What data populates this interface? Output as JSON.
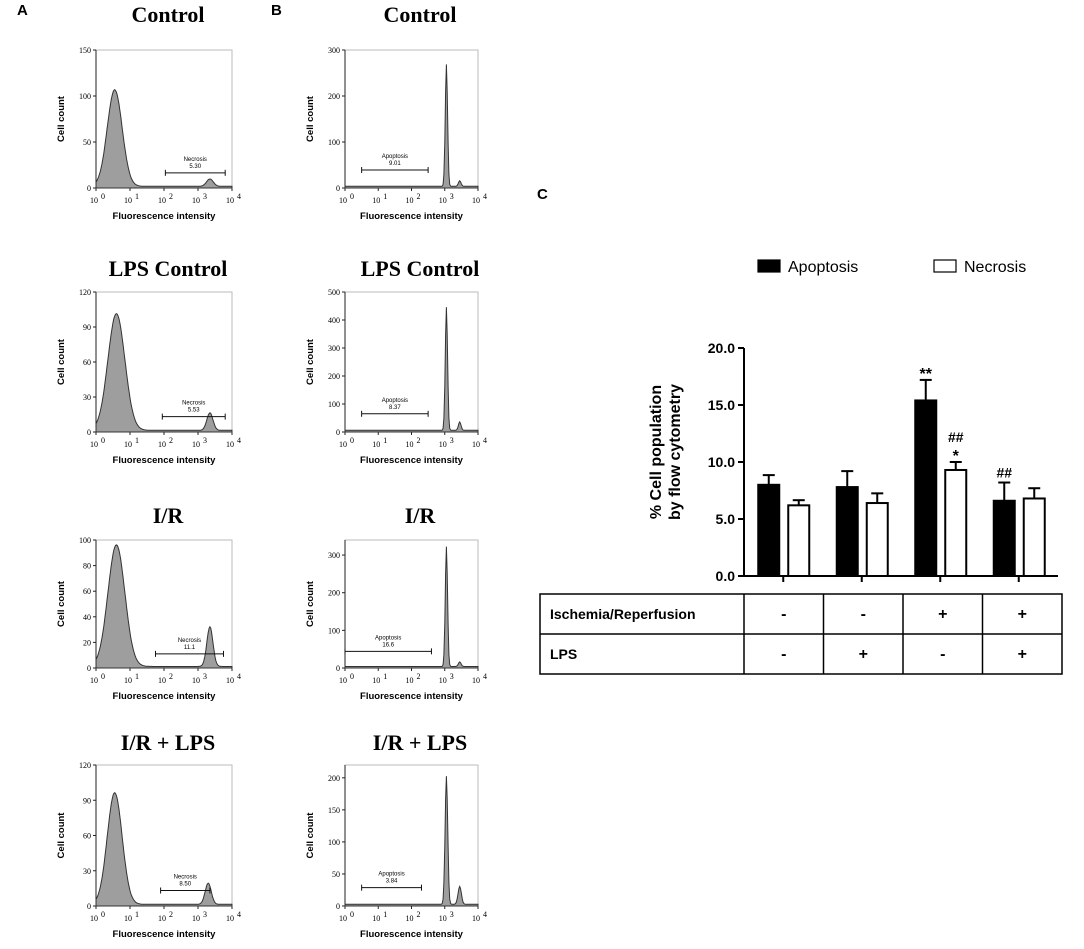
{
  "panel_labels": {
    "a": "A",
    "b": "B",
    "c": "C"
  },
  "hist_common": {
    "ylabel": "Cell count",
    "xlabel": "Fluorescence intensity",
    "xticks": [
      "10",
      "10",
      "10",
      "10",
      "10"
    ],
    "xtick_exponents": [
      "0",
      "1",
      "2",
      "3",
      "4"
    ],
    "fill_color": "#9e9e9e",
    "line_color": "#333333"
  },
  "chart_data": [
    {
      "panel": "A",
      "type": "area",
      "title": "Control",
      "ylim": [
        0,
        150
      ],
      "yticks": [
        "0",
        "50",
        "100",
        "150"
      ],
      "gate": {
        "label": "Necrosis",
        "value": "5.30",
        "from_decade": 2.04,
        "to_decade": 3.8
      },
      "peaks": [
        [
          0.55,
          105,
          0.22
        ],
        [
          3.35,
          8,
          0.1
        ]
      ]
    },
    {
      "panel": "A",
      "type": "area",
      "title": "LPS Control",
      "ylim": [
        0,
        120
      ],
      "yticks": [
        "0",
        "30",
        "60",
        "90",
        "120"
      ],
      "gate": {
        "label": "Necrosis",
        "value": "5.53",
        "from_decade": 1.95,
        "to_decade": 3.8
      },
      "peaks": [
        [
          0.6,
          100,
          0.25
        ],
        [
          3.35,
          15,
          0.09
        ]
      ]
    },
    {
      "panel": "A",
      "type": "area",
      "title": "I/R",
      "ylim": [
        0,
        100
      ],
      "yticks": [
        "0",
        "20",
        "40",
        "60",
        "80",
        "100"
      ],
      "gate": {
        "label": "Necrosis",
        "value": "11.1",
        "from_decade": 1.75,
        "to_decade": 3.75
      },
      "peaks": [
        [
          0.6,
          95,
          0.25
        ],
        [
          3.35,
          31,
          0.09
        ]
      ]
    },
    {
      "panel": "A",
      "type": "area",
      "title": "I/R + LPS",
      "ylim": [
        0,
        120
      ],
      "yticks": [
        "0",
        "30",
        "60",
        "90",
        "120"
      ],
      "gate": {
        "label": "Necrosis",
        "value": "8.50",
        "from_decade": 1.9,
        "to_decade": 3.35
      },
      "peaks": [
        [
          0.55,
          95,
          0.22
        ],
        [
          3.3,
          18,
          0.09
        ]
      ]
    },
    {
      "panel": "B",
      "type": "area",
      "title": "Control",
      "ylim": [
        0,
        300
      ],
      "yticks": [
        "0",
        "100",
        "200",
        "300"
      ],
      "gate": {
        "label": "Apoptosis",
        "value": "9.01",
        "from_decade": 0.5,
        "to_decade": 2.5
      },
      "peaks": [
        [
          3.05,
          265,
          0.035
        ],
        [
          3.45,
          12,
          0.04
        ]
      ]
    },
    {
      "panel": "B",
      "type": "area",
      "title": "LPS Control",
      "ylim": [
        0,
        500
      ],
      "yticks": [
        "0",
        "100",
        "200",
        "300",
        "400",
        "500"
      ],
      "gate": {
        "label": "Apoptosis",
        "value": "8.37",
        "from_decade": 0.5,
        "to_decade": 2.5
      },
      "peaks": [
        [
          3.05,
          440,
          0.035
        ],
        [
          3.45,
          30,
          0.04
        ]
      ]
    },
    {
      "panel": "B",
      "type": "area",
      "title": "I/R",
      "ylim": [
        0,
        340
      ],
      "yticks": [
        "0",
        "100",
        "200",
        "300"
      ],
      "gate": {
        "label": "Apoptosis",
        "value": "16.6",
        "from_decade": 0.0,
        "to_decade": 2.6
      },
      "peaks": [
        [
          3.05,
          318,
          0.035
        ],
        [
          3.45,
          12,
          0.04
        ]
      ]
    },
    {
      "panel": "B",
      "type": "area",
      "title": "I/R + LPS",
      "ylim": [
        0,
        220
      ],
      "yticks": [
        "0",
        "50",
        "100",
        "150",
        "200"
      ],
      "gate": {
        "label": "Apoptosis",
        "value": "3.84",
        "from_decade": 0.5,
        "to_decade": 2.3
      },
      "peaks": [
        [
          3.05,
          200,
          0.04
        ],
        [
          3.45,
          28,
          0.05
        ]
      ]
    },
    {
      "panel": "C",
      "type": "bar",
      "ylabel_line1": "% Cell population",
      "ylabel_line2": "by flow cytometry",
      "ylim": [
        0,
        20
      ],
      "yticks": [
        "0.0",
        "5.0",
        "10.0",
        "15.0",
        "20.0"
      ],
      "groups": 4,
      "series": [
        {
          "name": "Apoptosis",
          "color": "#000000",
          "values": [
            8.0,
            7.8,
            15.4,
            6.6
          ],
          "errors": [
            0.85,
            1.4,
            1.8,
            1.6
          ]
        },
        {
          "name": "Necrosis",
          "color": "#ffffff",
          "values": [
            6.2,
            6.4,
            9.3,
            6.8
          ],
          "errors": [
            0.45,
            0.85,
            0.7,
            0.9
          ]
        }
      ],
      "annotations": [
        {
          "series": 0,
          "group": 2,
          "text": "**"
        },
        {
          "series": 1,
          "group": 2,
          "text": "*"
        },
        {
          "series": 1,
          "group": 2,
          "text": "##"
        },
        {
          "series": 0,
          "group": 3,
          "text": "##"
        }
      ],
      "condition_table": {
        "rows": [
          {
            "label": "Ischemia/Reperfusion",
            "values": [
              "-",
              "-",
              "+",
              "+"
            ]
          },
          {
            "label": "LPS",
            "values": [
              "-",
              "+",
              "-",
              "+"
            ]
          }
        ]
      }
    }
  ]
}
